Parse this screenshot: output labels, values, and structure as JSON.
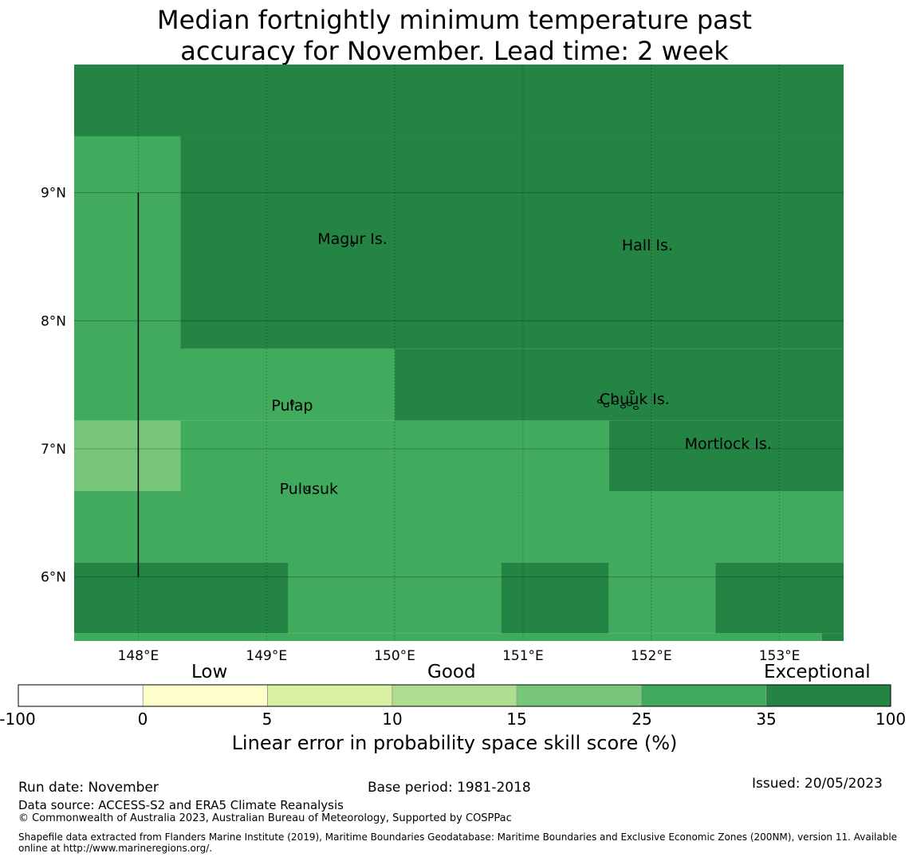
{
  "title": {
    "line1": "Median fortnightly minimum temperature past",
    "line2": "accuracy for November. Lead time: 2 week"
  },
  "map": {
    "lon_range": [
      147.5,
      153.5
    ],
    "lat_range": [
      5.5,
      10.0
    ],
    "lon_ticks": [
      148,
      149,
      150,
      151,
      152,
      153
    ],
    "lon_tick_labels": [
      "148°E",
      "149°E",
      "150°E",
      "151°E",
      "152°E",
      "153°E"
    ],
    "lat_ticks": [
      6,
      7,
      8,
      9
    ],
    "lat_tick_labels": [
      "6°N",
      "7°N",
      "8°N",
      "9°N"
    ],
    "skill_cells": [
      {
        "lon": [
          147.5,
          153.5
        ],
        "lat": [
          9.44,
          10.0
        ],
        "category": 6
      },
      {
        "lon": [
          147.5,
          148.33
        ],
        "lat": [
          7.22,
          9.44
        ],
        "category": 5
      },
      {
        "lon": [
          148.33,
          153.5
        ],
        "lat": [
          7.78,
          9.44
        ],
        "category": 6
      },
      {
        "lon": [
          148.33,
          150.0
        ],
        "lat": [
          7.22,
          7.78
        ],
        "category": 5
      },
      {
        "lon": [
          150.0,
          153.5
        ],
        "lat": [
          7.22,
          7.78
        ],
        "category": 6
      },
      {
        "lon": [
          147.5,
          148.33
        ],
        "lat": [
          6.67,
          7.22
        ],
        "category": 4
      },
      {
        "lon": [
          148.33,
          151.67
        ],
        "lat": [
          6.67,
          7.22
        ],
        "category": 5
      },
      {
        "lon": [
          151.67,
          153.5
        ],
        "lat": [
          6.67,
          7.22
        ],
        "category": 6
      },
      {
        "lon": [
          147.5,
          153.5
        ],
        "lat": [
          6.11,
          6.67
        ],
        "category": 5
      },
      {
        "lon": [
          147.5,
          149.17
        ],
        "lat": [
          5.56,
          6.11
        ],
        "category": 6
      },
      {
        "lon": [
          149.17,
          150.83
        ],
        "lat": [
          5.56,
          6.11
        ],
        "category": 5
      },
      {
        "lon": [
          150.83,
          151.67
        ],
        "lat": [
          5.56,
          6.11
        ],
        "category": 6
      },
      {
        "lon": [
          151.67,
          152.5
        ],
        "lat": [
          5.56,
          6.11
        ],
        "category": 5
      },
      {
        "lon": [
          152.5,
          153.5
        ],
        "lat": [
          5.56,
          6.11
        ],
        "category": 6
      },
      {
        "lon": [
          147.5,
          153.33
        ],
        "lat": [
          5.5,
          5.56
        ],
        "category": 5
      },
      {
        "lon": [
          153.33,
          153.5
        ],
        "lat": [
          5.5,
          5.56
        ],
        "category": 6
      }
    ],
    "boundary_line": {
      "lon": 148.0,
      "lat": [
        6.0,
        9.0
      ]
    },
    "places": [
      {
        "name": "Magur Is.",
        "lon": 149.67,
        "lat": 8.55
      },
      {
        "name": "Hall Is.",
        "lon": 151.97,
        "lat": 8.5
      },
      {
        "name": "Pulap",
        "lon": 149.2,
        "lat": 7.25
      },
      {
        "name": "Chuuk Is.",
        "lon": 151.87,
        "lat": 7.3
      },
      {
        "name": "Mortlock Is.",
        "lon": 152.6,
        "lat": 6.95
      },
      {
        "name": "Pulusuk",
        "lon": 149.33,
        "lat": 6.6
      }
    ]
  },
  "colorbar": {
    "categories": [
      "Low",
      "Good",
      "Exceptional"
    ],
    "ticks": [
      "-100",
      "0",
      "5",
      "10",
      "15",
      "25",
      "35",
      "100"
    ],
    "colors": [
      "#ffffff",
      "#ffffcc",
      "#d9f0a3",
      "#addd8e",
      "#78c679",
      "#41ab5d",
      "#238443"
    ],
    "label": "Linear error in probability space skill score (%)"
  },
  "footer": {
    "run_date": "Run date: November",
    "base_period": "Base period: 1981-2018",
    "issued": "Issued: 20/05/2023",
    "data_source": "Data source: ACCESS-S2 and ERA5 Climate Reanalysis",
    "copyright": "© Commonwealth of Australia 2023, Australian Bureau of Meteorology, Supported by COSPPac",
    "shapefile": "Shapefile data extracted from Flanders Marine Institute (2019), Maritime Boundaries Geodatabase: Maritime Boundaries and Exclusive Economic Zones (200NM), version 11. Available online at http://www.marineregions.org/."
  }
}
